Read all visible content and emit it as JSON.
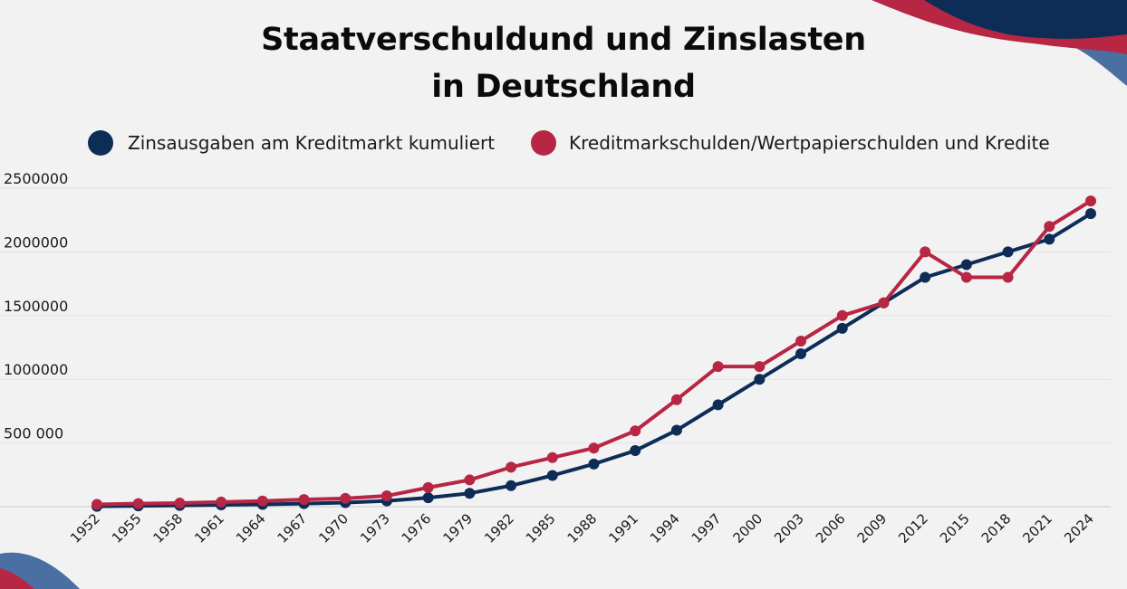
{
  "chart_data": {
    "type": "line",
    "title_line1": "Staatverschuldund und Zinslasten",
    "title_line2": "in Deutschland",
    "xlabel": "",
    "ylabel": "",
    "ylim": [
      0,
      2500000
    ],
    "y_ticks": [
      {
        "value": 500000,
        "label": "500 000"
      },
      {
        "value": 1000000,
        "label": "1000000"
      },
      {
        "value": 1500000,
        "label": "1500000"
      },
      {
        "value": 2000000,
        "label": "2000000"
      },
      {
        "value": 2500000,
        "label": "2500000"
      }
    ],
    "categories": [
      "1952",
      "1955",
      "1958",
      "1961",
      "1964",
      "1967",
      "1970",
      "1973",
      "1976",
      "1979",
      "1982",
      "1985",
      "1988",
      "1991",
      "1994",
      "1997",
      "2000",
      "2003",
      "2006",
      "2009",
      "2012",
      "2015",
      "2018",
      "2021",
      "2024"
    ],
    "series": [
      {
        "name": "Zinsausgaben am Kreditmarkt kumuliert",
        "color": "#0d2d57",
        "values": [
          3000,
          6000,
          10000,
          14000,
          18000,
          24000,
          32000,
          45000,
          70000,
          105000,
          165000,
          245000,
          335000,
          440000,
          600000,
          800000,
          1000000,
          1200000,
          1400000,
          1600000,
          1800000,
          1900000,
          2000000,
          2100000,
          2300000
        ]
      },
      {
        "name": "Kreditmarkschulden/Wertpapierschulden und Kredite",
        "color": "#b72643",
        "values": [
          18000,
          24000,
          28000,
          36000,
          44000,
          56000,
          65000,
          85000,
          150000,
          210000,
          310000,
          385000,
          460000,
          595000,
          840000,
          1100000,
          1100000,
          1300000,
          1500000,
          1600000,
          2000000,
          1800000,
          1800000,
          2200000,
          2400000
        ]
      }
    ],
    "grid": true,
    "legend_position": "top"
  },
  "decor": {
    "navy": "#0d2d57",
    "crimson": "#b72643",
    "steel": "#4a6fa3"
  }
}
